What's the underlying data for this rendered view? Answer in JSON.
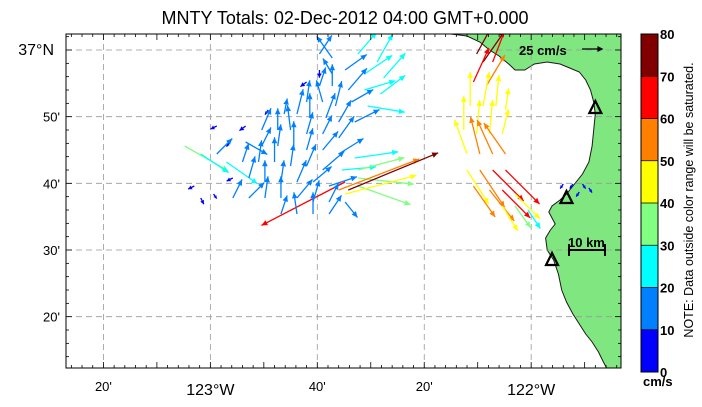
{
  "title": "MNTY Totals: 02-Dec-2012 04:00 GMT+0.000",
  "axes": {
    "x_ticks": [
      {
        "lon": -123.3333,
        "label": "20'",
        "major": false
      },
      {
        "lon": -123.0,
        "label": "123°W",
        "major": true
      },
      {
        "lon": -122.6667,
        "label": "40'",
        "major": false
      },
      {
        "lon": -122.3333,
        "label": "20'",
        "major": false
      },
      {
        "lon": -122.0,
        "label": "122°W",
        "major": true
      }
    ],
    "y_ticks": [
      {
        "lat": 37.0,
        "label": "37°N",
        "major": true
      },
      {
        "lat": 36.8333,
        "label": "50'",
        "major": false
      },
      {
        "lat": 36.6667,
        "label": "40'",
        "major": false
      },
      {
        "lat": 36.5,
        "label": "30'",
        "major": false
      },
      {
        "lat": 36.3333,
        "label": "20'",
        "major": false
      }
    ],
    "lon_range": [
      -123.45,
      -121.72
    ],
    "lat_range": [
      36.205,
      37.04
    ]
  },
  "reference_vector": {
    "label": "25 cm/s",
    "lon": -121.96,
    "lat": 37.005,
    "u": 25,
    "v": 0
  },
  "scale_bar": {
    "label": "10 km",
    "km": 10
  },
  "colorbar": {
    "ticks": [
      "0",
      "10",
      "20",
      "30",
      "40",
      "50",
      "60",
      "70",
      "80"
    ],
    "colors": [
      "#0000ff",
      "#0080ff",
      "#00ffff",
      "#80ff80",
      "#ffff00",
      "#ff8000",
      "#ff0000",
      "#800000"
    ],
    "unit": "cm/s",
    "note": "NOTE: Data outside color range will be saturated."
  },
  "colors": {
    "land": "#80e680",
    "grid": "#999999",
    "frame": "#000000"
  },
  "sites": [
    {
      "name": "site-1",
      "lon": -121.8,
      "lat": 36.855
    },
    {
      "name": "site-2",
      "lon": -121.89,
      "lat": 36.63
    },
    {
      "name": "site-3",
      "lon": -121.935,
      "lat": 36.475
    }
  ],
  "map_data": {
    "vectors": [
      {
        "lon": -122.66,
        "lat": 36.99,
        "u": 8,
        "v": 12,
        "speed": 15
      },
      {
        "lon": -122.62,
        "lat": 36.98,
        "u": -10,
        "v": 14,
        "speed": 17
      },
      {
        "lon": -122.54,
        "lat": 36.99,
        "u": 12,
        "v": 14,
        "speed": 20
      },
      {
        "lon": -122.48,
        "lat": 36.97,
        "u": 10,
        "v": 18,
        "speed": 21
      },
      {
        "lon": -122.66,
        "lat": 36.95,
        "u": 0,
        "v": -5,
        "speed": 5
      },
      {
        "lon": -122.62,
        "lat": 36.94,
        "u": -6,
        "v": 10,
        "speed": 12
      },
      {
        "lon": -122.58,
        "lat": 36.95,
        "u": 14,
        "v": 10,
        "speed": 17
      },
      {
        "lon": -122.52,
        "lat": 36.94,
        "u": 18,
        "v": 12,
        "speed": 22
      },
      {
        "lon": -122.46,
        "lat": 36.93,
        "u": 14,
        "v": 16,
        "speed": 21
      },
      {
        "lon": -122.7,
        "lat": 36.92,
        "u": -4,
        "v": -3,
        "speed": 5
      },
      {
        "lon": -122.66,
        "lat": 36.91,
        "u": 4,
        "v": 12,
        "speed": 13
      },
      {
        "lon": -122.62,
        "lat": 36.91,
        "u": 0,
        "v": 14,
        "speed": 14
      },
      {
        "lon": -122.57,
        "lat": 36.9,
        "u": 12,
        "v": 14,
        "speed": 18
      },
      {
        "lon": -122.52,
        "lat": 36.9,
        "u": 20,
        "v": 6,
        "speed": 21
      },
      {
        "lon": -122.47,
        "lat": 36.89,
        "u": 16,
        "v": 12,
        "speed": 20
      },
      {
        "lon": -122.7,
        "lat": 36.87,
        "u": 2,
        "v": 14,
        "speed": 14
      },
      {
        "lon": -122.65,
        "lat": 36.87,
        "u": -4,
        "v": 14,
        "speed": 15
      },
      {
        "lon": -122.61,
        "lat": 36.86,
        "u": 4,
        "v": 16,
        "speed": 16
      },
      {
        "lon": -122.56,
        "lat": 36.87,
        "u": 14,
        "v": 8,
        "speed": 16
      },
      {
        "lon": -122.51,
        "lat": 36.86,
        "u": 24,
        "v": -4,
        "speed": 24
      },
      {
        "lon": -122.82,
        "lat": 36.85,
        "u": -2,
        "v": -3,
        "speed": 4
      },
      {
        "lon": -122.77,
        "lat": 36.84,
        "u": 2,
        "v": 10,
        "speed": 10
      },
      {
        "lon": -122.73,
        "lat": 36.84,
        "u": 4,
        "v": 16,
        "speed": 16
      },
      {
        "lon": -122.69,
        "lat": 36.83,
        "u": 0,
        "v": 16,
        "speed": 16
      },
      {
        "lon": -122.64,
        "lat": 36.83,
        "u": 6,
        "v": 16,
        "speed": 17
      },
      {
        "lon": -122.6,
        "lat": 36.82,
        "u": 8,
        "v": 14,
        "speed": 16
      },
      {
        "lon": -122.55,
        "lat": 36.82,
        "u": 16,
        "v": 8,
        "speed": 18
      },
      {
        "lon": -122.89,
        "lat": 36.81,
        "u": -4,
        "v": -3,
        "speed": 5
      },
      {
        "lon": -122.84,
        "lat": 36.8,
        "u": 6,
        "v": 14,
        "speed": 15
      },
      {
        "lon": -122.79,
        "lat": 36.8,
        "u": 0,
        "v": 14,
        "speed": 14
      },
      {
        "lon": -122.75,
        "lat": 36.8,
        "u": -2,
        "v": 16,
        "speed": 16
      },
      {
        "lon": -122.7,
        "lat": 36.79,
        "u": 4,
        "v": 14,
        "speed": 15
      },
      {
        "lon": -122.65,
        "lat": 36.79,
        "u": 6,
        "v": 12,
        "speed": 13
      },
      {
        "lon": -122.6,
        "lat": 36.78,
        "u": 10,
        "v": 14,
        "speed": 17
      },
      {
        "lon": -122.94,
        "lat": 36.77,
        "u": -2,
        "v": -3,
        "speed": 4
      },
      {
        "lon": -122.89,
        "lat": 36.77,
        "u": 14,
        "v": -8,
        "speed": 16
      },
      {
        "lon": -122.84,
        "lat": 36.76,
        "u": 6,
        "v": 12,
        "speed": 13
      },
      {
        "lon": -122.79,
        "lat": 36.76,
        "u": 2,
        "v": 14,
        "speed": 14
      },
      {
        "lon": -122.74,
        "lat": 36.76,
        "u": 0,
        "v": 16,
        "speed": 16
      },
      {
        "lon": -122.7,
        "lat": 36.75,
        "u": 4,
        "v": 14,
        "speed": 15
      },
      {
        "lon": -122.65,
        "lat": 36.75,
        "u": 10,
        "v": 12,
        "speed": 16
      },
      {
        "lon": -122.6,
        "lat": 36.74,
        "u": 16,
        "v": 10,
        "speed": 19
      },
      {
        "lon": -122.55,
        "lat": 36.73,
        "u": 28,
        "v": 4,
        "speed": 28
      },
      {
        "lon": -122.95,
        "lat": 36.72,
        "u": 20,
        "v": -14,
        "speed": 24
      },
      {
        "lon": -122.9,
        "lat": 36.72,
        "u": 4,
        "v": 12,
        "speed": 13
      },
      {
        "lon": -122.85,
        "lat": 36.72,
        "u": 2,
        "v": 14,
        "speed": 14
      },
      {
        "lon": -122.8,
        "lat": 36.72,
        "u": 0,
        "v": 16,
        "speed": 16
      },
      {
        "lon": -122.75,
        "lat": 36.71,
        "u": 2,
        "v": 14,
        "speed": 14
      },
      {
        "lon": -122.7,
        "lat": 36.71,
        "u": 6,
        "v": 14,
        "speed": 15
      },
      {
        "lon": -122.65,
        "lat": 36.7,
        "u": 14,
        "v": 12,
        "speed": 18
      },
      {
        "lon": -122.59,
        "lat": 36.7,
        "u": 22,
        "v": 2,
        "speed": 22
      },
      {
        "lon": -122.54,
        "lat": 36.7,
        "u": 30,
        "v": 8,
        "speed": 31
      },
      {
        "lon": -122.54,
        "lat": 36.68,
        "u": 36,
        "v": -4,
        "speed": 36
      },
      {
        "lon": -122.54,
        "lat": 36.66,
        "u": 34,
        "v": -12,
        "speed": 36
      },
      {
        "lon": -122.93,
        "lat": 36.68,
        "u": -4,
        "v": -2,
        "speed": 4
      },
      {
        "lon": -122.88,
        "lat": 36.68,
        "u": 4,
        "v": 14,
        "speed": 15
      },
      {
        "lon": -122.83,
        "lat": 36.67,
        "u": 0,
        "v": 14,
        "speed": 14
      },
      {
        "lon": -122.78,
        "lat": 36.67,
        "u": 2,
        "v": 14,
        "speed": 14
      },
      {
        "lon": -122.73,
        "lat": 36.67,
        "u": 6,
        "v": 14,
        "speed": 15
      },
      {
        "lon": -122.68,
        "lat": 36.67,
        "u": 12,
        "v": 10,
        "speed": 16
      },
      {
        "lon": -122.63,
        "lat": 36.66,
        "u": 18,
        "v": 6,
        "speed": 19
      },
      {
        "lon": -122.58,
        "lat": 36.67,
        "u": -54,
        "v": -28,
        "speed": 61
      },
      {
        "lon": -122.6,
        "lat": 36.65,
        "u": 52,
        "v": 20,
        "speed": 56
      },
      {
        "lon": -122.58,
        "lat": 36.64,
        "u": 46,
        "v": 12,
        "speed": 48
      },
      {
        "lon": -122.57,
        "lat": 36.65,
        "u": 58,
        "v": 24,
        "speed": 80
      },
      {
        "lon": -122.99,
        "lat": 36.64,
        "u": 2,
        "v": -3,
        "speed": 4
      },
      {
        "lon": -122.93,
        "lat": 36.63,
        "u": 6,
        "v": 12,
        "speed": 13
      },
      {
        "lon": -122.88,
        "lat": 36.63,
        "u": 10,
        "v": 10,
        "speed": 14
      },
      {
        "lon": -122.83,
        "lat": 36.63,
        "u": 2,
        "v": 14,
        "speed": 14
      },
      {
        "lon": -122.78,
        "lat": 36.63,
        "u": 0,
        "v": 14,
        "speed": 14
      },
      {
        "lon": -122.73,
        "lat": 36.63,
        "u": 10,
        "v": 12,
        "speed": 16
      },
      {
        "lon": -122.68,
        "lat": 36.62,
        "u": 4,
        "v": 14,
        "speed": 15
      },
      {
        "lon": -122.63,
        "lat": 36.62,
        "u": 6,
        "v": 12,
        "speed": 13
      },
      {
        "lon": -122.58,
        "lat": 36.62,
        "u": 8,
        "v": -10,
        "speed": 13
      },
      {
        "lon": -122.78,
        "lat": 36.59,
        "u": 4,
        "v": 12,
        "speed": 13
      },
      {
        "lon": -122.73,
        "lat": 36.59,
        "u": -2,
        "v": 14,
        "speed": 14
      },
      {
        "lon": -122.68,
        "lat": 36.59,
        "u": 0,
        "v": 14,
        "speed": 14
      },
      {
        "lon": -122.63,
        "lat": 36.59,
        "u": 8,
        "v": 12,
        "speed": 14
      },
      {
        "lon": -123.08,
        "lat": 36.76,
        "u": 28,
        "v": -16,
        "speed": 32
      },
      {
        "lon": -123.03,
        "lat": 36.74,
        "u": 18,
        "v": -12,
        "speed": 22
      },
      {
        "lon": -122.98,
        "lat": 36.74,
        "u": 10,
        "v": 10,
        "speed": 14
      },
      {
        "lon": -122.98,
        "lat": 36.81,
        "u": -4,
        "v": -2,
        "speed": 4
      },
      {
        "lon": -123.05,
        "lat": 36.66,
        "u": -4,
        "v": -2,
        "speed": 4
      },
      {
        "lon": -123.03,
        "lat": 36.63,
        "u": 2,
        "v": -4,
        "speed": 4
      },
      {
        "lon": -122.17,
        "lat": 36.99,
        "u": 12,
        "v": 22,
        "speed": 75
      },
      {
        "lon": -122.15,
        "lat": 36.97,
        "u": 14,
        "v": 20,
        "speed": 70
      },
      {
        "lon": -122.12,
        "lat": 36.97,
        "u": 10,
        "v": 26,
        "speed": 68
      },
      {
        "lon": -122.18,
        "lat": 36.92,
        "u": 10,
        "v": 22,
        "speed": 65
      },
      {
        "lon": -122.14,
        "lat": 36.91,
        "u": 12,
        "v": 20,
        "speed": 55
      },
      {
        "lon": -122.19,
        "lat": 36.86,
        "u": 0,
        "v": 22,
        "speed": 48
      },
      {
        "lon": -122.15,
        "lat": 36.86,
        "u": 4,
        "v": 22,
        "speed": 46
      },
      {
        "lon": -122.11,
        "lat": 36.86,
        "u": 2,
        "v": 20,
        "speed": 45
      },
      {
        "lon": -122.08,
        "lat": 36.85,
        "u": 2,
        "v": 14,
        "speed": 40
      },
      {
        "lon": -122.21,
        "lat": 36.8,
        "u": 0,
        "v": 22,
        "speed": 45
      },
      {
        "lon": -122.17,
        "lat": 36.79,
        "u": 2,
        "v": 22,
        "speed": 48
      },
      {
        "lon": -122.13,
        "lat": 36.79,
        "u": 2,
        "v": 22,
        "speed": 44
      },
      {
        "lon": -122.09,
        "lat": 36.79,
        "u": 4,
        "v": 16,
        "speed": 40
      },
      {
        "lon": -122.2,
        "lat": 36.74,
        "u": -8,
        "v": 22,
        "speed": 48
      },
      {
        "lon": -122.16,
        "lat": 36.74,
        "u": -6,
        "v": 24,
        "speed": 56
      },
      {
        "lon": -122.12,
        "lat": 36.74,
        "u": -10,
        "v": 22,
        "speed": 52
      },
      {
        "lon": -122.08,
        "lat": 36.74,
        "u": -14,
        "v": 20,
        "speed": 55
      },
      {
        "lon": -122.2,
        "lat": 36.7,
        "u": 14,
        "v": -22,
        "speed": 48
      },
      {
        "lon": -122.16,
        "lat": 36.7,
        "u": 16,
        "v": -24,
        "speed": 55
      },
      {
        "lon": -122.12,
        "lat": 36.7,
        "u": 20,
        "v": -20,
        "speed": 62
      },
      {
        "lon": -122.08,
        "lat": 36.7,
        "u": 22,
        "v": -22,
        "speed": 65
      },
      {
        "lon": -122.18,
        "lat": 36.66,
        "u": 14,
        "v": -20,
        "speed": 50
      },
      {
        "lon": -122.13,
        "lat": 36.65,
        "u": 16,
        "v": -20,
        "speed": 54
      },
      {
        "lon": -122.09,
        "lat": 36.65,
        "u": 18,
        "v": -18,
        "speed": 60
      },
      {
        "lon": -122.05,
        "lat": 36.64,
        "u": 16,
        "v": -16,
        "speed": 44
      },
      {
        "lon": -122.09,
        "lat": 36.61,
        "u": 10,
        "v": -16,
        "speed": 40
      },
      {
        "lon": -122.05,
        "lat": 36.61,
        "u": 10,
        "v": -14,
        "speed": 38
      },
      {
        "lon": -122.01,
        "lat": 36.6,
        "u": 8,
        "v": -12,
        "speed": 25
      },
      {
        "lon": -121.9,
        "lat": 36.665,
        "u": -2,
        "v": -3,
        "speed": 5
      },
      {
        "lon": -121.87,
        "lat": 36.665,
        "u": -2,
        "v": -3,
        "speed": 5
      },
      {
        "lon": -121.84,
        "lat": 36.665,
        "u": 2,
        "v": -3,
        "speed": 5
      },
      {
        "lon": -121.82,
        "lat": 36.655,
        "u": 2,
        "v": -3,
        "speed": 5
      },
      {
        "lon": -121.85,
        "lat": 36.645,
        "u": -2,
        "v": -3,
        "speed": 5
      }
    ]
  }
}
